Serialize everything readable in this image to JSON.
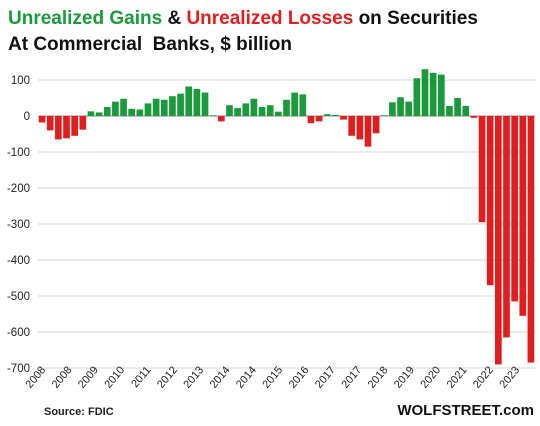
{
  "chart_data": {
    "type": "bar",
    "title_parts": [
      {
        "text": "Unrealized Gains",
        "color": "#1a9a3c"
      },
      {
        "text": " & ",
        "color": "#111111"
      },
      {
        "text": "Unrealized Losses",
        "color": "#e01e1e"
      },
      {
        "text": " on Securities",
        "color": "#111111"
      }
    ],
    "subtitle": "At Commercial  Banks, $ billion",
    "source": "Source: FDIC",
    "brand": "WOLFSTREET.com",
    "ylim": [
      -700,
      140
    ],
    "yticks": [
      100,
      0,
      -100,
      -200,
      -300,
      -400,
      -500,
      -600,
      -700
    ],
    "grid": "horizontal",
    "x_tick_labels": [
      "2008",
      "2008",
      "2009",
      "2010",
      "2011",
      "2012",
      "2013",
      "2014",
      "2014",
      "2015",
      "2016",
      "2017",
      "2017",
      "2018",
      "2019",
      "2020",
      "2021",
      "2022",
      "2023"
    ],
    "colors": {
      "gain": "#1a9a3c",
      "loss": "#e01e1e"
    },
    "values": [
      -18,
      -40,
      -65,
      -62,
      -55,
      -38,
      13,
      10,
      25,
      40,
      48,
      20,
      18,
      35,
      48,
      45,
      55,
      62,
      82,
      75,
      65,
      2,
      -15,
      30,
      22,
      35,
      48,
      25,
      30,
      12,
      45,
      65,
      60,
      -20,
      -15,
      5,
      3,
      -10,
      -55,
      -65,
      -85,
      -48,
      2,
      38,
      52,
      40,
      105,
      130,
      120,
      115,
      28,
      50,
      28,
      -5,
      -295,
      -470,
      -690,
      -615,
      -515,
      -555,
      -685
    ]
  }
}
